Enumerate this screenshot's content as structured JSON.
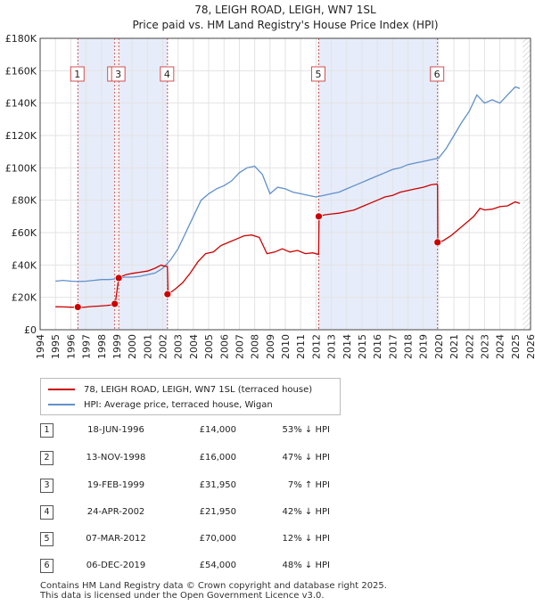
{
  "chart_data": {
    "type": "line",
    "title": "78, LEIGH ROAD, LEIGH, WN7 1SL",
    "subtitle": "Price paid vs. HM Land Registry's House Price Index (HPI)",
    "xlim": [
      1994,
      2026
    ],
    "ylim": [
      0,
      180000
    ],
    "x_ticks": [
      "1994",
      "1995",
      "1996",
      "1997",
      "1998",
      "1999",
      "2000",
      "2001",
      "2002",
      "2003",
      "2004",
      "2005",
      "2006",
      "2007",
      "2008",
      "2009",
      "2010",
      "2011",
      "2012",
      "2013",
      "2014",
      "2015",
      "2016",
      "2017",
      "2018",
      "2019",
      "2020",
      "2021",
      "2022",
      "2023",
      "2024",
      "2025",
      "2026"
    ],
    "y_ticks": [
      {
        "value": 0,
        "label": "£0"
      },
      {
        "value": 20000,
        "label": "£20K"
      },
      {
        "value": 40000,
        "label": "£40K"
      },
      {
        "value": 60000,
        "label": "£60K"
      },
      {
        "value": 80000,
        "label": "£80K"
      },
      {
        "value": 100000,
        "label": "£100K"
      },
      {
        "value": 120000,
        "label": "£120K"
      },
      {
        "value": 140000,
        "label": "£140K"
      },
      {
        "value": 160000,
        "label": "£160K"
      },
      {
        "value": 180000,
        "label": "£180K"
      }
    ],
    "grid": true,
    "legend_position": "below",
    "series": [
      {
        "name": "78, LEIGH ROAD, LEIGH, WN7 1SL (terraced house)",
        "color": "#cc0000",
        "x": [
          1995.0,
          1995.5,
          1996.0,
          1996.46,
          1996.8,
          1997.3,
          1997.8,
          1998.3,
          1998.87,
          1998.9,
          1999.13,
          1999.2,
          1999.6,
          2000.0,
          2000.5,
          2001.0,
          2001.5,
          2001.9,
          2002.0,
          2002.31,
          2002.35,
          2002.8,
          2003.3,
          2003.8,
          2004.3,
          2004.8,
          2005.3,
          2005.8,
          2006.3,
          2006.8,
          2007.3,
          2007.8,
          2008.3,
          2008.8,
          2009.3,
          2009.8,
          2010.3,
          2010.8,
          2011.3,
          2011.8,
          2012.17,
          2012.2,
          2012.6,
          2013.0,
          2013.5,
          2014.0,
          2014.5,
          2015.0,
          2015.5,
          2016.0,
          2016.5,
          2017.0,
          2017.5,
          2018.0,
          2018.5,
          2019.0,
          2019.5,
          2019.9,
          2019.93,
          2019.95,
          2020.3,
          2020.8,
          2021.3,
          2021.8,
          2022.3,
          2022.7,
          2023.0,
          2023.5,
          2024.0,
          2024.5,
          2025.0,
          2025.3
        ],
        "y": [
          14200,
          14100,
          13900,
          14000,
          13800,
          14300,
          14600,
          14900,
          15500,
          16000,
          31950,
          32500,
          34000,
          34800,
          35500,
          36200,
          38000,
          40000,
          39500,
          39000,
          21950,
          25000,
          29000,
          35000,
          42000,
          47000,
          48000,
          52000,
          54000,
          56000,
          58000,
          58500,
          57000,
          47000,
          48000,
          50000,
          48000,
          49000,
          47000,
          47500,
          46500,
          70000,
          71000,
          71500,
          72000,
          73000,
          74000,
          76000,
          78000,
          80000,
          82000,
          83000,
          85000,
          86000,
          87000,
          88000,
          89500,
          90000,
          89000,
          54000,
          55000,
          58000,
          62000,
          66000,
          70000,
          75000,
          74000,
          74500,
          76000,
          76500,
          79000,
          78000
        ]
      },
      {
        "name": "HPI: Average price, terraced house, Wigan",
        "color": "#6090cc",
        "x": [
          1995.0,
          1995.5,
          1996.0,
          1996.5,
          1997.0,
          1997.5,
          1998.0,
          1998.5,
          1999.0,
          1999.5,
          2000.0,
          2000.5,
          2001.0,
          2001.5,
          2002.0,
          2002.5,
          2003.0,
          2003.5,
          2004.0,
          2004.5,
          2005.0,
          2005.5,
          2006.0,
          2006.5,
          2007.0,
          2007.5,
          2008.0,
          2008.5,
          2009.0,
          2009.5,
          2010.0,
          2010.5,
          2011.0,
          2011.5,
          2012.0,
          2012.5,
          2013.0,
          2013.5,
          2014.0,
          2014.5,
          2015.0,
          2015.5,
          2016.0,
          2016.5,
          2017.0,
          2017.5,
          2018.0,
          2018.5,
          2019.0,
          2019.5,
          2020.0,
          2020.5,
          2021.0,
          2021.5,
          2022.0,
          2022.5,
          2023.0,
          2023.5,
          2024.0,
          2024.5,
          2025.0,
          2025.3
        ],
        "y": [
          30000,
          30500,
          30000,
          29800,
          30000,
          30500,
          31000,
          31000,
          31500,
          32500,
          32500,
          33000,
          34000,
          35000,
          38000,
          43000,
          50000,
          60000,
          70000,
          80000,
          84000,
          87000,
          89000,
          92000,
          97000,
          100000,
          101000,
          96000,
          84000,
          88000,
          87000,
          85000,
          84000,
          83000,
          82000,
          83000,
          84000,
          85000,
          87000,
          89000,
          91000,
          93000,
          95000,
          97000,
          99000,
          100000,
          102000,
          103000,
          104000,
          105000,
          106000,
          112000,
          120000,
          128000,
          135000,
          145000,
          140000,
          142000,
          140000,
          145000,
          150000,
          149000
        ]
      }
    ],
    "sales": [
      {
        "num": "1",
        "x": 1996.46,
        "y": 14000
      },
      {
        "num": "2",
        "x": 1998.87,
        "y": 16000
      },
      {
        "num": "3",
        "x": 1999.13,
        "y": 31950
      },
      {
        "num": "4",
        "x": 2002.31,
        "y": 21950
      },
      {
        "num": "5",
        "x": 2012.18,
        "y": 70000
      },
      {
        "num": "6",
        "x": 2019.93,
        "y": 54000
      }
    ],
    "shaded_ranges": [
      [
        1996.46,
        1998.87
      ],
      [
        1999.13,
        2002.31
      ],
      [
        2012.18,
        2019.93
      ]
    ]
  },
  "legend": {
    "house_label": "78, LEIGH ROAD, LEIGH, WN7 1SL (terraced house)",
    "hpi_label": "HPI: Average price, terraced house, Wigan",
    "house_color": "#cc0000",
    "hpi_color": "#6090cc"
  },
  "sales_table": [
    {
      "num": "1",
      "date": "18-JUN-1996",
      "price": "£14,000",
      "pct": "53% ↓ HPI"
    },
    {
      "num": "2",
      "date": "13-NOV-1998",
      "price": "£16,000",
      "pct": "47% ↓ HPI"
    },
    {
      "num": "3",
      "date": "19-FEB-1999",
      "price": "£31,950",
      "pct": "7% ↑ HPI"
    },
    {
      "num": "4",
      "date": "24-APR-2002",
      "price": "£21,950",
      "pct": "42% ↓ HPI"
    },
    {
      "num": "5",
      "date": "07-MAR-2012",
      "price": "£70,000",
      "pct": "12% ↓ HPI"
    },
    {
      "num": "6",
      "date": "06-DEC-2019",
      "price": "£54,000",
      "pct": "48% ↓ HPI"
    }
  ],
  "footer": {
    "line1": "Contains HM Land Registry data © Crown copyright and database right 2025.",
    "line2": "This data is licensed under the Open Government Licence v3.0."
  }
}
